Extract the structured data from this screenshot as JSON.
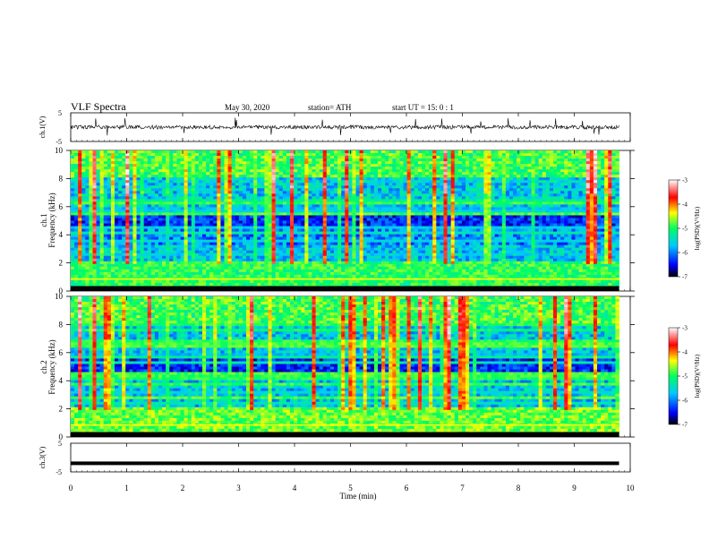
{
  "header": {
    "title": "VLF  Spectra",
    "date": "May 30, 2020",
    "station": "station= ATH",
    "start": "start  UT  =   15: 0  : 1"
  },
  "chart_data": [
    {
      "type": "line",
      "panel": "ch.1 waveform",
      "ylabel": "ch.1(V)",
      "ylim": [
        -5,
        5
      ],
      "yticks": [
        "5",
        "-5"
      ],
      "xlim": [
        0,
        10
      ],
      "data_extent_min": 9.8,
      "baseline_value": 0,
      "envelope_amplitude_value": 1.2,
      "line_color": "#000000"
    },
    {
      "type": "heatmap",
      "panel": "ch.1 spectrogram",
      "ylabel": "ch.1\nFrequency  (kHz)",
      "ylim": [
        0,
        10
      ],
      "yticks": [
        "0",
        "2",
        "4",
        "6",
        "8",
        "10"
      ],
      "xlim": [
        0,
        10
      ],
      "data_extent_min": 9.8,
      "colorbar_label": "log(PSD)(V²/Hz)",
      "colorbar_ticks": [
        "-3",
        "-4",
        "-5",
        "-6",
        "-7"
      ],
      "colorbar_range": [
        -7,
        -3
      ]
    },
    {
      "type": "heatmap",
      "panel": "ch.2 spectrogram",
      "ylabel": "ch.2\nFrequency  (kHz)",
      "ylim": [
        0,
        10
      ],
      "yticks": [
        "0",
        "2",
        "4",
        "6",
        "8",
        "10"
      ],
      "xlim": [
        0,
        10
      ],
      "data_extent_min": 9.8,
      "colorbar_label": "log(PSD)(V²/Hz)",
      "colorbar_ticks": [
        "-3",
        "-4",
        "-5",
        "-6",
        "-7"
      ],
      "colorbar_range": [
        -7,
        -3
      ]
    },
    {
      "type": "line",
      "panel": "ch.3 waveform",
      "ylabel": "ch.3(V)",
      "ylim": [
        -5,
        5
      ],
      "yticks": [
        "5",
        "-5"
      ],
      "xlim": [
        0,
        10
      ],
      "data_extent_min": 9.8,
      "baseline_value": -2,
      "line_color": "#000000"
    }
  ],
  "xaxis": {
    "label": "Time  (min)",
    "ticks": [
      "0",
      "1",
      "2",
      "3",
      "4",
      "5",
      "6",
      "7",
      "8",
      "9",
      "10"
    ]
  },
  "colormap": [
    "#000000",
    "#0000ff",
    "#00c8ff",
    "#00ff60",
    "#ffff00",
    "#ff0000",
    "#ffffff"
  ]
}
